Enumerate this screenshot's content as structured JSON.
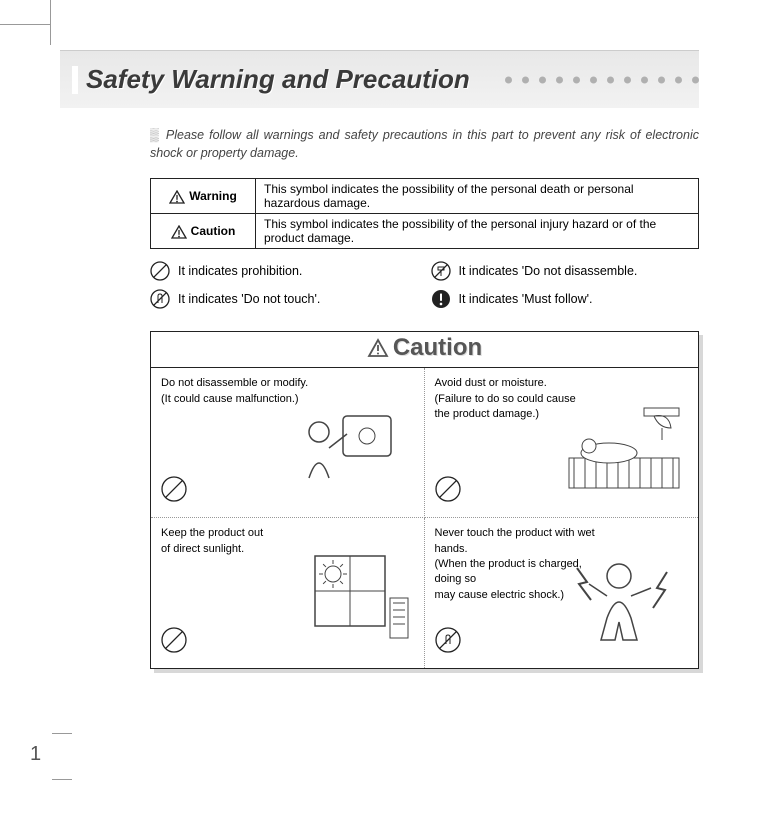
{
  "header": {
    "title": "Safety Warning and Precaution",
    "dot_count": 12,
    "dot_color": "#b0b0b0",
    "bar_gradient_top": "#e8e8e8",
    "bar_gradient_bottom": "#f2f2f2"
  },
  "intro": {
    "marker": "▒",
    "text": "Please follow all warnings and safety precautions in this part to prevent any risk of electronic shock or property damage."
  },
  "definitions": [
    {
      "label": "Warning",
      "desc": "This symbol indicates the possibility of the personal death or personal hazardous damage."
    },
    {
      "label": "Caution",
      "desc": "This symbol indicates the possibility of the personal injury hazard or of the product damage."
    }
  ],
  "legend": [
    {
      "symbol": "prohibit",
      "text": "It indicates prohibition."
    },
    {
      "symbol": "no-disassemble",
      "text": "It indicates 'Do not disassemble."
    },
    {
      "symbol": "no-touch",
      "text": "It indicates 'Do not touch'."
    },
    {
      "symbol": "must",
      "text": "It indicates 'Must follow'."
    }
  ],
  "caution_box": {
    "title": "Caution",
    "panels": [
      {
        "lines": [
          "Do not disassemble or modify.",
          "(It could cause malfunction.)"
        ],
        "symbol": "prohibit",
        "illust": "person-device"
      },
      {
        "lines": [
          "Avoid dust or moisture.",
          "(Failure to do so could cause",
          " the product damage.)"
        ],
        "symbol": "prohibit",
        "illust": "bathroom-scene"
      },
      {
        "lines": [
          "Keep the product out",
          "of direct sunlight."
        ],
        "symbol": "prohibit",
        "illust": "sunny-window"
      },
      {
        "lines": [
          "Never touch the product with wet hands.",
          "(When the product is charged,  doing so",
          " may cause electric shock.)"
        ],
        "symbol": "no-touch",
        "illust": "shock-person"
      }
    ]
  },
  "page_number": "1",
  "colors": {
    "text": "#3a3a3a",
    "border": "#222222",
    "shadow": "#d8d8d8",
    "caution_title": "#565656"
  }
}
